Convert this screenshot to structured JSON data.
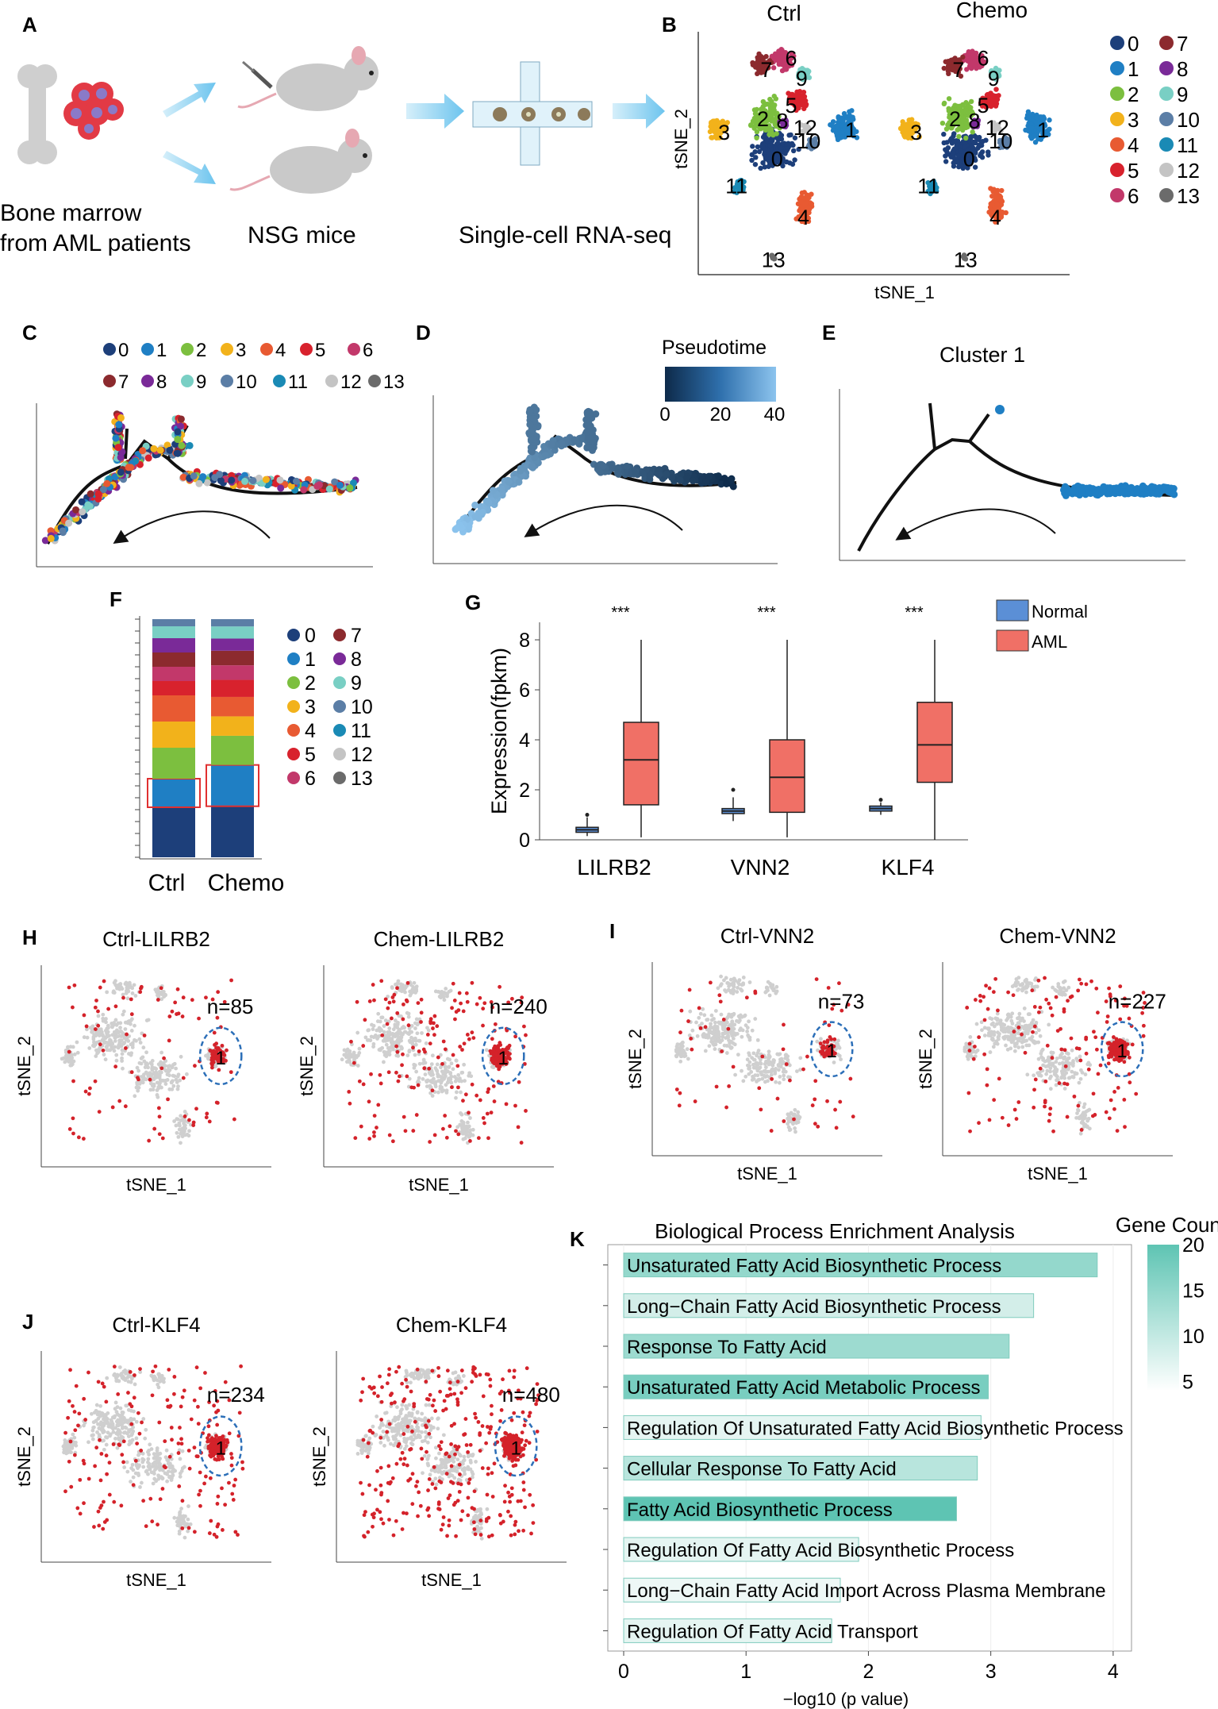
{
  "colors": {
    "clusters": [
      "#1d3f7a",
      "#1f7fc4",
      "#7cbf3f",
      "#f2b21b",
      "#e85a32",
      "#d8222d",
      "#c2386a",
      "#8c2a2e",
      "#7a2a98",
      "#79cfc4",
      "#5b7ea6",
      "#1a8ab5",
      "#c4c4c4",
      "#6b6b6b"
    ],
    "normal": "#5b8fd6",
    "aml": "#f07066",
    "tsne_gray": "#cfcfcf",
    "tsne_red": "#d4222a",
    "arrow_blue": "#8fd0f0",
    "gene_count_low": "#eef8f6",
    "gene_count_high": "#5ec4b3"
  },
  "panelA": {
    "label": "A",
    "left_caption_1": "Bone marrow",
    "left_caption_2": "from AML patients",
    "middle_caption": "NSG mice",
    "right_caption": "Single-cell RNA-seq"
  },
  "panelB": {
    "label": "B",
    "plot_titles": [
      "Ctrl",
      "Chemo"
    ],
    "xlabel": "tSNE_1",
    "ylabel": "tSNE_2",
    "cluster_ids": [
      "0",
      "1",
      "2",
      "3",
      "4",
      "5",
      "6",
      "7",
      "8",
      "9",
      "10",
      "11",
      "12",
      "13"
    ]
  },
  "panelC": {
    "label": "C",
    "legend_ids": [
      "0",
      "1",
      "2",
      "3",
      "4",
      "5",
      "6",
      "7",
      "8",
      "9",
      "10",
      "11",
      "12",
      "13"
    ]
  },
  "panelD": {
    "label": "D",
    "legend_title": "Pseudotime",
    "ticks": [
      "0",
      "20",
      "40"
    ]
  },
  "panelE": {
    "label": "E",
    "title": "Cluster 1"
  },
  "panelF": {
    "label": "F",
    "x_labels": [
      "Ctrl",
      "Chemo"
    ]
  },
  "panelG": {
    "label": "G",
    "legend": [
      "Normal",
      "AML"
    ],
    "significance": "***"
  },
  "panelH": {
    "label": "H",
    "titles": [
      "Ctrl-LILRB2",
      "Chem-LILRB2"
    ],
    "counts": [
      "n=85",
      "n=240"
    ],
    "cluster": "1"
  },
  "panelI": {
    "label": "I",
    "titles": [
      "Ctrl-VNN2",
      "Chem-VNN2"
    ],
    "counts": [
      "n=73",
      "n=227"
    ],
    "cluster": "1"
  },
  "panelJ": {
    "label": "J",
    "titles": [
      "Ctrl-KLF4",
      "Chem-KLF4"
    ],
    "counts": [
      "n=234",
      "n=480"
    ],
    "cluster": "1"
  },
  "panelK": {
    "label": "K",
    "legend_title": "Gene Count"
  },
  "chart_data": [
    {
      "id": "F",
      "type": "bar",
      "title": "",
      "categories": [
        "Ctrl",
        "Chemo"
      ],
      "stacked": true,
      "series_order": [
        "0",
        "1",
        "2",
        "3",
        "4",
        "5",
        "6",
        "7",
        "8",
        "9",
        "10",
        "11",
        "12",
        "13"
      ],
      "proportions": {
        "Ctrl": [
          0.21,
          0.12,
          0.13,
          0.11,
          0.11,
          0.06,
          0.06,
          0.06,
          0.06,
          0.05,
          0.03,
          0.0,
          0.0,
          0.0
        ],
        "Chemo": [
          0.21,
          0.17,
          0.12,
          0.08,
          0.08,
          0.07,
          0.06,
          0.06,
          0.05,
          0.05,
          0.03,
          0.0,
          0.0,
          0.0
        ]
      },
      "highlighted_cluster": "1",
      "legend": [
        "0",
        "1",
        "2",
        "3",
        "4",
        "5",
        "6",
        "7",
        "8",
        "9",
        "10",
        "11",
        "12",
        "13"
      ]
    },
    {
      "id": "G",
      "type": "box",
      "title": "",
      "ylabel": "Expression(fpkm)",
      "ylim": [
        0,
        8.7
      ],
      "yticks": [
        0,
        2,
        4,
        6,
        8
      ],
      "categories": [
        "LILRB2",
        "VNN2",
        "KLF4"
      ],
      "series": [
        {
          "name": "Normal",
          "boxes": [
            {
              "min": 0.15,
              "q1": 0.3,
              "median": 0.4,
              "q3": 0.5,
              "max": 0.9,
              "outliers": [
                1.0
              ]
            },
            {
              "min": 0.75,
              "q1": 1.05,
              "median": 1.15,
              "q3": 1.25,
              "max": 1.7,
              "outliers": [
                2.0
              ]
            },
            {
              "min": 1.0,
              "q1": 1.15,
              "median": 1.25,
              "q3": 1.35,
              "max": 1.5,
              "outliers": [
                1.6
              ]
            }
          ]
        },
        {
          "name": "AML",
          "boxes": [
            {
              "min": 0.1,
              "q1": 1.4,
              "median": 3.2,
              "q3": 4.7,
              "max": 8.0,
              "outliers": []
            },
            {
              "min": 0.1,
              "q1": 1.1,
              "median": 2.5,
              "q3": 4.0,
              "max": 8.0,
              "outliers": []
            },
            {
              "min": 0.0,
              "q1": 2.3,
              "median": 3.8,
              "q3": 5.5,
              "max": 8.0,
              "outliers": []
            }
          ]
        }
      ],
      "significance": [
        "***",
        "***",
        "***"
      ]
    },
    {
      "id": "K",
      "type": "bar",
      "orientation": "horizontal",
      "title": "Biological Process Enrichment Analysis",
      "xlabel": "−log10 (p value)",
      "xlim": [
        0,
        4.15
      ],
      "xticks": [
        0,
        1,
        2,
        3,
        4
      ],
      "categories": [
        "Unsaturated Fatty Acid Biosynthetic Process",
        "Long−Chain Fatty Acid Biosynthetic Process",
        "Response To Fatty Acid",
        "Unsaturated Fatty Acid Metabolic Process",
        "Regulation Of Unsaturated Fatty Acid Biosynthetic Process",
        "Cellular Response To Fatty Acid",
        "Fatty Acid Biosynthetic Process",
        "Regulation Of Fatty Acid Biosynthetic Process",
        "Long−Chain Fatty Acid Import Across Plasma Membrane",
        "Regulation Of Fatty Acid Transport"
      ],
      "values": [
        3.87,
        3.35,
        3.15,
        2.98,
        2.92,
        2.89,
        2.72,
        1.92,
        1.77,
        1.7
      ],
      "gene_counts": [
        14,
        7,
        13,
        17,
        5,
        10,
        20,
        5,
        4,
        5
      ],
      "color_scale": {
        "title": "Gene Count",
        "range": [
          4,
          20
        ],
        "ticks": [
          "5",
          "10",
          "15",
          "20"
        ]
      }
    }
  ]
}
